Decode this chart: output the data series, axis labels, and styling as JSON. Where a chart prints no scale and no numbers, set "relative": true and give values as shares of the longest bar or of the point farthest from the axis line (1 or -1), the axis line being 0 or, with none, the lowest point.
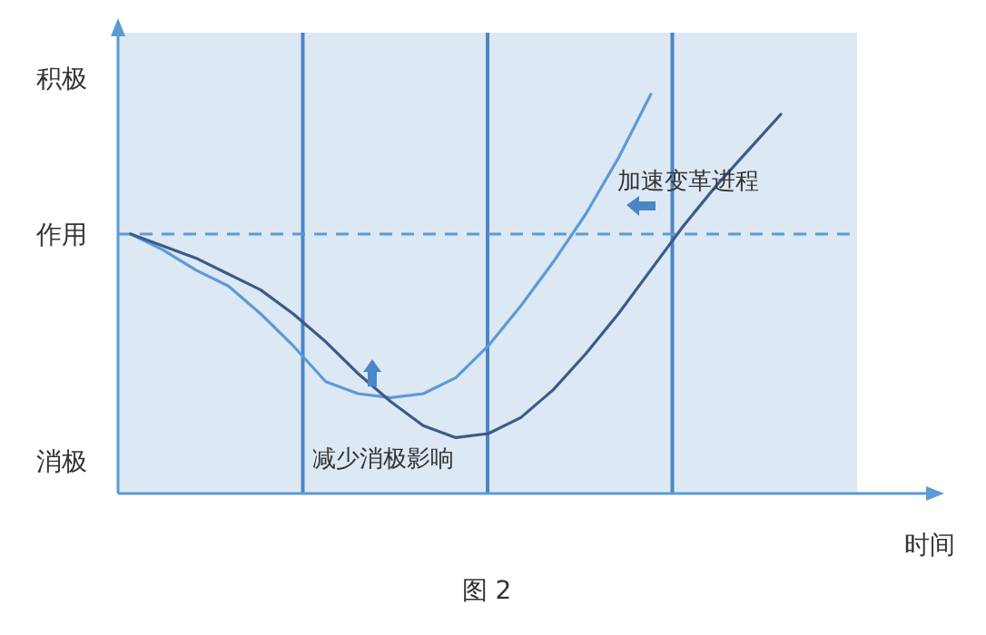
{
  "chart_data": {
    "type": "line",
    "relative": true,
    "xlabel": "时间",
    "categories": [
      null,
      null,
      null,
      null,
      null,
      null,
      null,
      null,
      null,
      null,
      null,
      null,
      null,
      null,
      null,
      null,
      null,
      null,
      null,
      null,
      null
    ],
    "series": [
      {
        "color": "#5b9bd5",
        "values": [
          0.65,
          0.61,
          0.56,
          0.52,
          0.45,
          0.37,
          0.28,
          0.25,
          0.24,
          0.25,
          0.29,
          0.37,
          0.47,
          0.58,
          0.7,
          0.84,
          1.0,
          null,
          null,
          null,
          null
        ]
      },
      {
        "color": "#3c5a8a",
        "values": [
          0.65,
          0.62,
          0.59,
          0.55,
          0.51,
          0.45,
          0.38,
          0.3,
          0.23,
          0.17,
          0.14,
          0.15,
          0.19,
          0.26,
          0.35,
          0.45,
          0.56,
          0.67,
          0.77,
          0.86,
          0.95
        ]
      }
    ],
    "ref_lines": [
      {
        "axis": "y",
        "value": 0.65,
        "label": "作用",
        "color": "#5b9bd5",
        "line_style": "dashed"
      }
    ],
    "annotations": [
      "积极",
      "消极",
      "加速变革进程",
      "减少消极影响",
      "图 2"
    ],
    "grid": false
  }
}
